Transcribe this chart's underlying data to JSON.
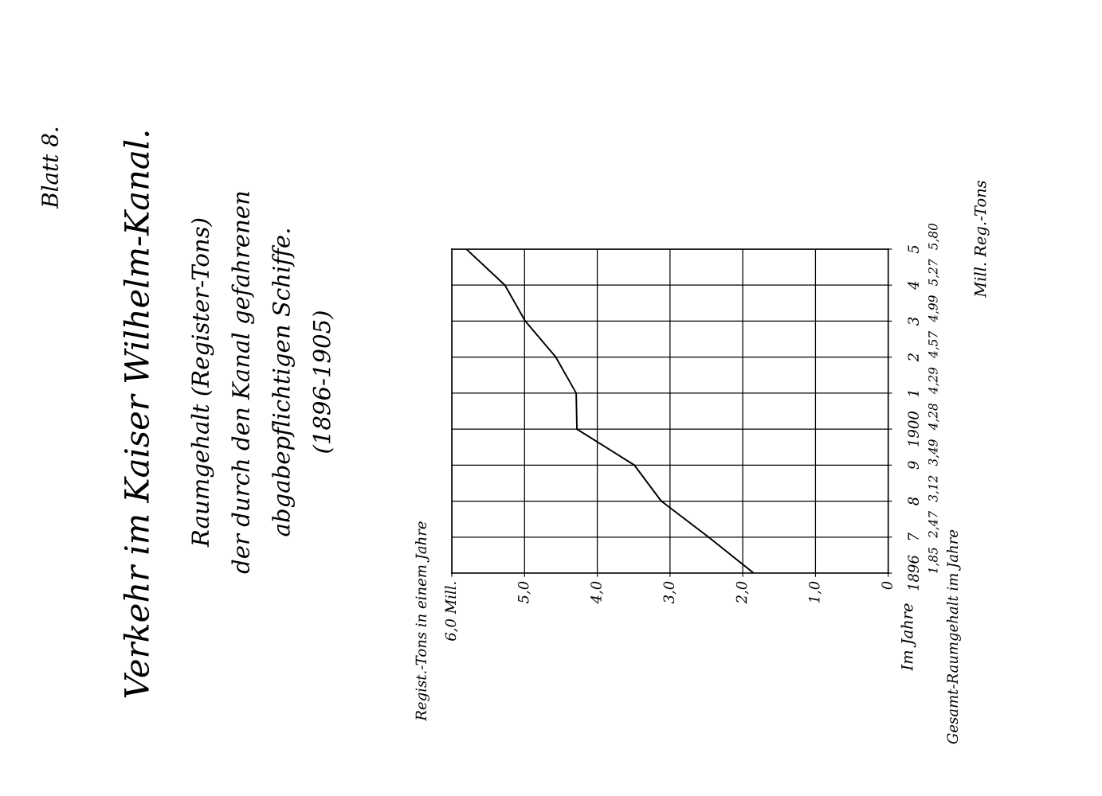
{
  "chart_data": {
    "type": "line",
    "orientation": "horizontal",
    "title": "Verkehr im Kaiser Wilhelm-Kanal.",
    "subtitle": "Raumgehalt (Register-Tons)\nder durch den Kanal gefahrenen\nabgabepflichtigen Schiffe.\n(1896-1905)",
    "ylabel": "Im Jahre",
    "annotations": [
      "Blatt 8.",
      "Gesamt-Raumgehalt im Jahre",
      "Mill. Reg.-Tons",
      "Regist.-Tons in einem Jahre"
    ],
    "categories": [
      "5",
      "4",
      "3",
      "2",
      "1",
      "1900",
      "9",
      "8",
      "7",
      "1896"
    ],
    "series": [
      {
        "color": "#000000",
        "values": [
          5.8,
          5.27,
          4.99,
          4.57,
          4.29,
          4.28,
          3.49,
          3.12,
          2.47,
          1.85
        ],
        "value_labels": [
          "5,80",
          "5,27",
          "4,99",
          "4,57",
          "4,29",
          "4,28",
          "3,49",
          "3,12",
          "2,47",
          "1,85"
        ]
      }
    ],
    "xlim": [
      6.0,
      0
    ],
    "xticks": [
      {
        "value": 6.0,
        "label": "6,0 Mill."
      },
      {
        "value": 5.0,
        "label": "5,0"
      },
      {
        "value": 4.0,
        "label": "4,0"
      },
      {
        "value": 3.0,
        "label": "3,0"
      },
      {
        "value": 2.0,
        "label": "2,0"
      },
      {
        "value": 1.0,
        "label": "1,0"
      },
      {
        "value": 0,
        "label": "0"
      }
    ],
    "grid": true,
    "line_style": "solid",
    "marker": "none",
    "legend": false
  }
}
